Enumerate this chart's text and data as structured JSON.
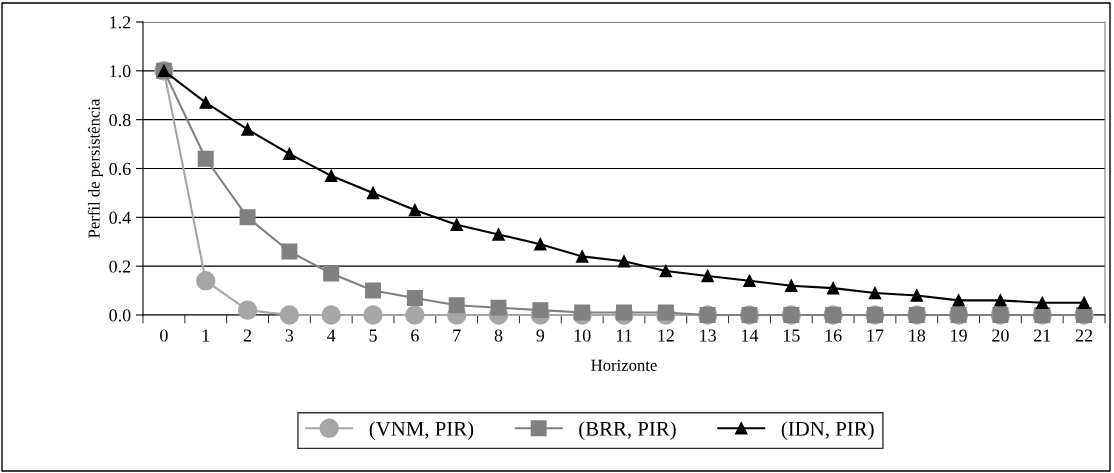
{
  "chart_data": {
    "type": "line",
    "xlabel": "Horizonte",
    "ylabel": "Perfil de persistência",
    "categories": [
      "0",
      "1",
      "2",
      "3",
      "4",
      "5",
      "6",
      "7",
      "8",
      "9",
      "10",
      "11",
      "12",
      "13",
      "14",
      "15",
      "16",
      "17",
      "18",
      "19",
      "20",
      "21",
      "22"
    ],
    "series": [
      {
        "name": "(VNM, PIR)",
        "color": "#a6a6a6",
        "marker": "circle",
        "values": [
          1.0,
          0.14,
          0.02,
          0,
          0,
          0,
          0,
          0,
          0,
          0,
          0,
          0,
          0,
          0,
          0,
          0,
          0,
          0,
          0,
          0,
          0,
          0,
          0
        ]
      },
      {
        "name": "(BRR, PIR)",
        "color": "#808080",
        "marker": "square",
        "values": [
          1.0,
          0.64,
          0.4,
          0.26,
          0.17,
          0.1,
          0.07,
          0.04,
          0.03,
          0.02,
          0.01,
          0.01,
          0.01,
          0,
          0,
          0,
          0,
          0,
          0,
          0,
          0,
          0,
          0
        ]
      },
      {
        "name": "(IDN, PIR)",
        "color": "#000000",
        "marker": "triangle",
        "values": [
          1.0,
          0.87,
          0.76,
          0.66,
          0.57,
          0.5,
          0.43,
          0.37,
          0.33,
          0.29,
          0.24,
          0.22,
          0.18,
          0.16,
          0.14,
          0.12,
          0.11,
          0.09,
          0.08,
          0.06,
          0.06,
          0.05,
          0.05
        ]
      }
    ],
    "ylim": [
      0,
      1.2
    ],
    "yticks": [
      {
        "value": 0,
        "label": "0.0"
      },
      {
        "value": 0.2,
        "label": "0.2"
      },
      {
        "value": 0.4,
        "label": "0.4"
      },
      {
        "value": 0.6,
        "label": "0.6"
      },
      {
        "value": 0.8,
        "label": "0.8"
      },
      {
        "value": 1.0,
        "label": "1.0"
      },
      {
        "value": 1.2,
        "label": "1.2"
      }
    ],
    "grid": "y",
    "legend": "bottom",
    "line_style": "solid"
  }
}
